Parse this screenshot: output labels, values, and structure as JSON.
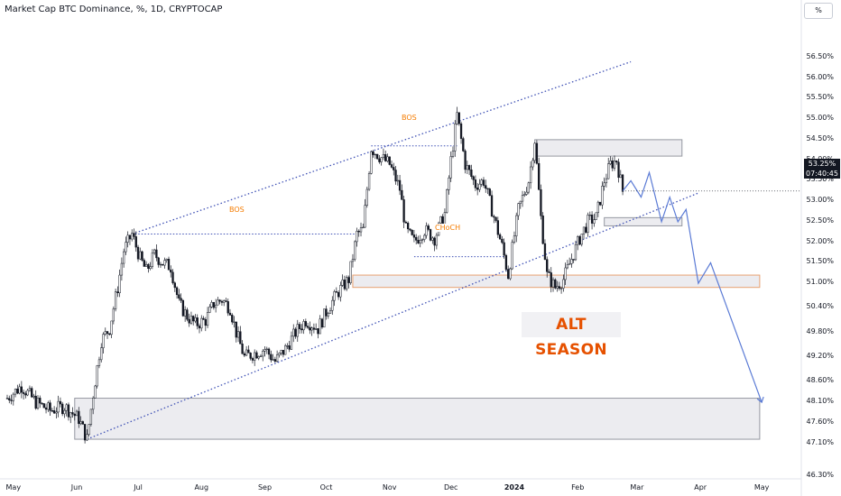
{
  "header": {
    "title": "Market Cap BTC Dominance, %, 1D, CRYPTOCAP"
  },
  "axis": {
    "unit_label": "%",
    "y_ticks": [
      "56.50%",
      "56.00%",
      "55.50%",
      "55.00%",
      "54.50%",
      "54.00%",
      "53.50%",
      "53.00%",
      "52.50%",
      "52.00%",
      "51.50%",
      "51.00%",
      "50.40%",
      "49.80%",
      "49.20%",
      "48.60%",
      "48.10%",
      "47.60%",
      "47.10%",
      "46.30%"
    ],
    "x_ticks": [
      "May",
      "Jun",
      "Jul",
      "Aug",
      "Sep",
      "Oct",
      "Nov",
      "Dec",
      "2024",
      "Feb",
      "Mar",
      "Apr",
      "May"
    ]
  },
  "price_tag": {
    "value": "53.25%",
    "countdown": "07:40:45"
  },
  "annotations": {
    "bos_1": "BOS",
    "bos_2": "BOS",
    "choch": "CHoCH",
    "alt_season": "ALT SEASON"
  },
  "colors": {
    "candle": "#131722",
    "channel": "#3f51b5",
    "projection": "#5b7bd5",
    "annotation": "#f57c00",
    "zone_fill": "#e4e4ea",
    "zone_border": "#9598a1",
    "demand_border": "#e8a070",
    "alt_season_text": "#e65100"
  },
  "chart_data": {
    "type": "line",
    "title": "Market Cap BTC Dominance, %, 1D, CRYPTOCAP",
    "xlabel": "",
    "ylabel": "%",
    "x": [
      "May",
      "Jun",
      "Jul",
      "Aug",
      "Sep",
      "Oct",
      "Nov",
      "Dec",
      "2024",
      "Feb",
      "Mar",
      "Apr",
      "May"
    ],
    "ylim": [
      46.3,
      56.8
    ],
    "series": [
      {
        "name": "",
        "points": [
          [
            "2023-04-28",
            48.2
          ],
          [
            "2023-05-05",
            48.5
          ],
          [
            "2023-05-12",
            48.1
          ],
          [
            "2023-05-19",
            47.9
          ],
          [
            "2023-05-26",
            48.0
          ],
          [
            "2023-06-02",
            47.7
          ],
          [
            "2023-06-06",
            47.2
          ],
          [
            "2023-06-09",
            48.3
          ],
          [
            "2023-06-13",
            49.6
          ],
          [
            "2023-06-17",
            49.9
          ],
          [
            "2023-06-21",
            50.9
          ],
          [
            "2023-06-24",
            51.8
          ],
          [
            "2023-06-28",
            52.2
          ],
          [
            "2023-07-02",
            51.6
          ],
          [
            "2023-07-05",
            51.3
          ],
          [
            "2023-07-09",
            51.7
          ],
          [
            "2023-07-13",
            51.5
          ],
          [
            "2023-07-17",
            51.4
          ],
          [
            "2023-07-21",
            50.5
          ],
          [
            "2023-07-25",
            50.2
          ],
          [
            "2023-07-29",
            50.0
          ],
          [
            "2023-08-03",
            50.1
          ],
          [
            "2023-08-07",
            50.5
          ],
          [
            "2023-08-11",
            50.6
          ],
          [
            "2023-08-15",
            50.4
          ],
          [
            "2023-08-18",
            49.8
          ],
          [
            "2023-08-22",
            49.2
          ],
          [
            "2023-08-27",
            49.3
          ],
          [
            "2023-09-01",
            49.4
          ],
          [
            "2023-09-06",
            49.1
          ],
          [
            "2023-09-11",
            49.4
          ],
          [
            "2023-09-16",
            49.8
          ],
          [
            "2023-09-21",
            50.1
          ],
          [
            "2023-09-27",
            49.9
          ],
          [
            "2023-10-02",
            50.4
          ],
          [
            "2023-10-07",
            50.8
          ],
          [
            "2023-10-12",
            51.1
          ],
          [
            "2023-10-16",
            52.2
          ],
          [
            "2023-10-19",
            52.3
          ],
          [
            "2023-10-23",
            54.3
          ],
          [
            "2023-10-27",
            54.1
          ],
          [
            "2023-11-01",
            53.9
          ],
          [
            "2023-11-06",
            53.3
          ],
          [
            "2023-11-09",
            52.3
          ],
          [
            "2023-11-13",
            52.0
          ],
          [
            "2023-11-18",
            52.3
          ],
          [
            "2023-11-23",
            52.1
          ],
          [
            "2023-11-28",
            52.7
          ],
          [
            "2023-12-01",
            54.0
          ],
          [
            "2023-12-04",
            55.1
          ],
          [
            "2023-12-08",
            53.9
          ],
          [
            "2023-12-13",
            53.4
          ],
          [
            "2023-12-17",
            53.5
          ],
          [
            "2023-12-21",
            52.8
          ],
          [
            "2023-12-26",
            51.9
          ],
          [
            "2023-12-29",
            51.2
          ],
          [
            "2024-01-03",
            52.8
          ],
          [
            "2024-01-08",
            53.5
          ],
          [
            "2024-01-11",
            54.5
          ],
          [
            "2024-01-14",
            52.6
          ],
          [
            "2024-01-17",
            51.2
          ],
          [
            "2024-01-21",
            50.9
          ],
          [
            "2024-01-25",
            51.1
          ],
          [
            "2024-01-29",
            51.6
          ],
          [
            "2024-02-02",
            52.1
          ],
          [
            "2024-02-06",
            52.5
          ],
          [
            "2024-02-10",
            52.6
          ],
          [
            "2024-02-14",
            53.5
          ],
          [
            "2024-02-17",
            53.9
          ],
          [
            "2024-02-20",
            54.0
          ],
          [
            "2024-02-23",
            53.25
          ]
        ]
      }
    ],
    "projection": [
      [
        "2024-02-23",
        53.25
      ],
      [
        "2024-02-27",
        53.5
      ],
      [
        "2024-03-03",
        53.1
      ],
      [
        "2024-03-07",
        53.7
      ],
      [
        "2024-03-13",
        52.5
      ],
      [
        "2024-03-17",
        53.1
      ],
      [
        "2024-03-21",
        52.5
      ],
      [
        "2024-03-25",
        52.8
      ],
      [
        "2024-03-31",
        51.0
      ],
      [
        "2024-04-06",
        51.5
      ],
      [
        "2024-05-01",
        48.1
      ]
    ],
    "channel": {
      "lower": [
        [
          "2023-06-06",
          47.2
        ],
        [
          "2024-03-31",
          53.2
        ]
      ],
      "upper": [
        [
          "2023-06-28",
          52.2
        ],
        [
          "2024-02-27",
          56.4
        ]
      ]
    },
    "zones": [
      {
        "from": "2023-10-14",
        "to": "2024-04-31",
        "low": 50.9,
        "high": 51.2
      },
      {
        "from": "2024-01-11",
        "to": "2024-03-23",
        "low": 54.1,
        "high": 54.5
      },
      {
        "from": "2024-02-14",
        "to": "2024-03-23",
        "low": 52.4,
        "high": 52.6
      },
      {
        "from": "2023-05-31",
        "to": "2024-04-31",
        "low": 47.2,
        "high": 48.2
      }
    ],
    "grid": false,
    "legend": "none"
  }
}
